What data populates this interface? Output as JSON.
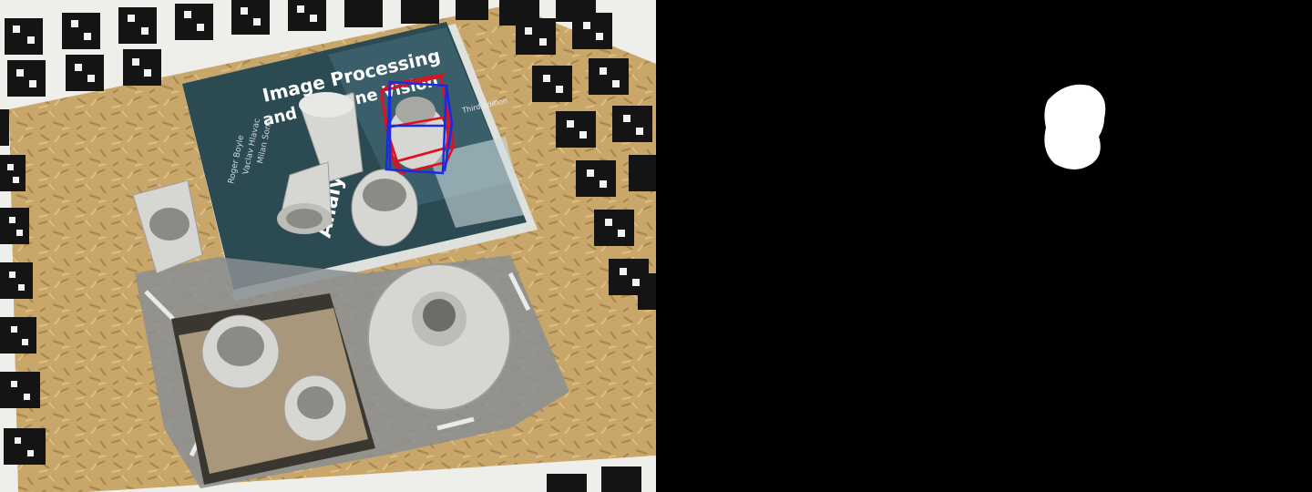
{
  "scene": {
    "book": {
      "title_line1": "Image Processing",
      "title_line2": "and Machine Vision",
      "title_word3": "Analysis,",
      "edition": "Third Edition",
      "author1": "Milan Sonka",
      "author2": "Vaclav Hlavac",
      "author3": "Roger Boyle"
    },
    "colors": {
      "board": "#c9a76b",
      "marker_dark": "#141414",
      "marker_paper": "#f2f2ef",
      "book_cover": "#2c4a52",
      "ceramic": "#d6d6d2",
      "box_outline_estimated": "#e01020",
      "box_outline_ground_truth": "#1a2be0",
      "mask_bg": "#000000",
      "mask_fg": "#ffffff"
    }
  }
}
